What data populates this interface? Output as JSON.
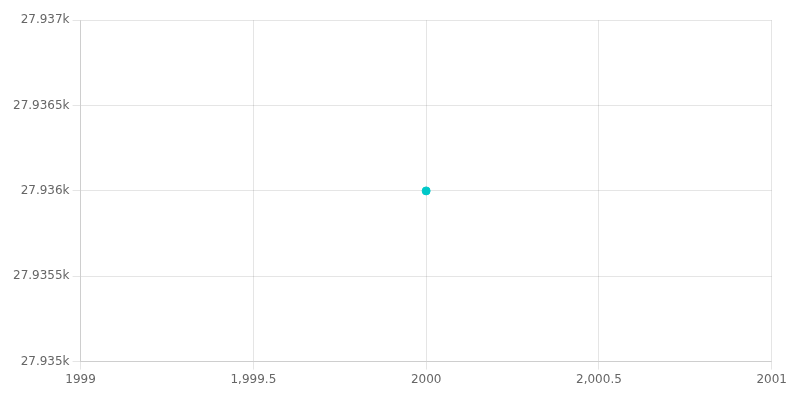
{
  "chart_data": {
    "type": "scatter",
    "x": [
      2000
    ],
    "values": [
      27936
    ],
    "color": "#00c8c8",
    "xlim": [
      1999,
      2001
    ],
    "ylim": [
      27935,
      27937
    ],
    "xticks": [
      1999,
      {
        "value": 1999.5,
        "label": "1,999.5"
      },
      2000,
      {
        "value": 2000.5,
        "label": "2,000.5"
      },
      2001
    ],
    "yticks": [
      {
        "value": 27935,
        "label": "27.935k"
      },
      {
        "value": 27935.5,
        "label": "27.9355k"
      },
      {
        "value": 27936,
        "label": "27.936k"
      },
      {
        "value": 27936.5,
        "label": "27.9365k"
      },
      {
        "value": 27937,
        "label": "27.937k"
      }
    ],
    "grid": true
  }
}
